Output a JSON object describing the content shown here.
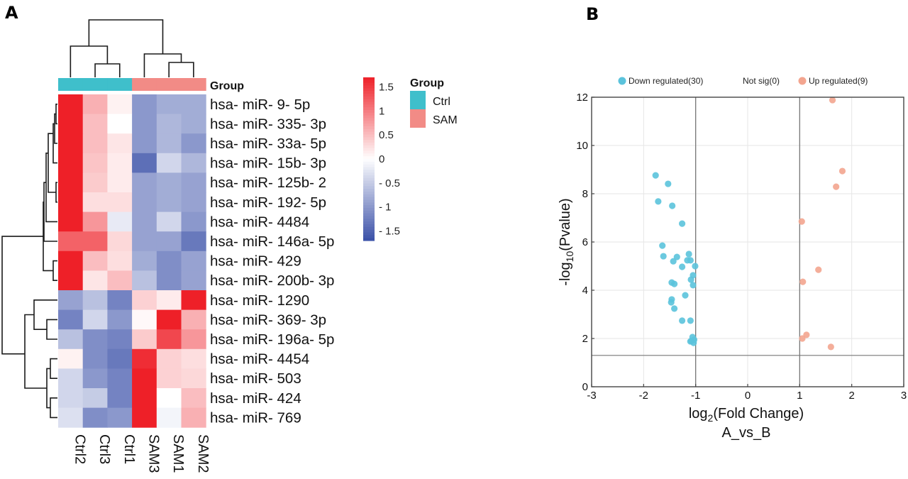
{
  "chart_data": [
    {
      "panel": "A",
      "type": "heatmap",
      "title": "",
      "group_annotation": {
        "label": "Group",
        "legend_title": "Group",
        "groups": [
          {
            "name": "Ctrl",
            "color": "#3fbfcb"
          },
          {
            "name": "SAM",
            "color": "#f28b86"
          }
        ]
      },
      "columns": [
        "Ctrl2",
        "Ctrl3",
        "Ctrl1",
        "SAM3",
        "SAM1",
        "SAM2"
      ],
      "column_groups": [
        "Ctrl",
        "Ctrl",
        "Ctrl",
        "SAM",
        "SAM",
        "SAM"
      ],
      "rows": [
        "hsa- miR- 9- 5p",
        "hsa- miR- 335- 3p",
        "hsa- miR- 33a- 5p",
        "hsa- miR- 15b- 3p",
        "hsa- miR- 125b- 2",
        "hsa- miR- 192- 5p",
        "hsa- miR- 4484",
        "hsa- miR- 146a- 5p",
        "hsa- miR- 429",
        "hsa- miR- 200b- 3p",
        "hsa- miR- 1290",
        "hsa- miR- 369- 3p",
        "hsa- miR- 196a- 5p",
        "hsa- miR- 4454",
        "hsa- miR- 503",
        "hsa- miR- 424",
        "hsa- miR- 769"
      ],
      "values": [
        [
          1.7,
          0.6,
          0.1,
          -1.0,
          -0.8,
          -0.8
        ],
        [
          1.7,
          0.5,
          0.0,
          -1.0,
          -0.7,
          -0.8
        ],
        [
          1.7,
          0.5,
          0.2,
          -1.0,
          -0.7,
          -1.0
        ],
        [
          1.7,
          0.45,
          0.15,
          -1.4,
          -0.4,
          -0.7
        ],
        [
          1.7,
          0.4,
          0.15,
          -0.9,
          -0.8,
          -0.9
        ],
        [
          1.7,
          0.25,
          0.25,
          -0.9,
          -0.8,
          -0.9
        ],
        [
          1.7,
          0.8,
          -0.2,
          -0.9,
          -0.4,
          -1.0
        ],
        [
          1.2,
          1.2,
          0.3,
          -0.9,
          -0.9,
          -1.3
        ],
        [
          1.7,
          0.5,
          0.25,
          -0.8,
          -1.1,
          -0.9
        ],
        [
          1.7,
          0.2,
          0.5,
          -0.6,
          -1.1,
          -0.9
        ],
        [
          -0.9,
          -0.6,
          -1.2,
          0.35,
          0.15,
          1.7
        ],
        [
          -1.2,
          -0.4,
          -1.0,
          0.05,
          1.7,
          0.6
        ],
        [
          -0.6,
          -1.1,
          -1.2,
          0.4,
          1.4,
          0.8
        ],
        [
          0.1,
          -1.1,
          -1.3,
          1.6,
          0.35,
          0.25
        ],
        [
          -0.4,
          -1.0,
          -1.2,
          1.7,
          0.35,
          0.3
        ],
        [
          -0.4,
          -0.5,
          -1.2,
          1.7,
          0.0,
          0.5
        ],
        [
          -0.3,
          -1.1,
          -1.0,
          1.7,
          -0.1,
          0.6
        ]
      ],
      "color_scale": {
        "min": -1.7,
        "mid": 0,
        "max": 1.7,
        "low_color": "#3a50a8",
        "mid_color": "#ffffff",
        "high_color": "#ee2028",
        "ticks": [
          "1.5",
          "1",
          "0.5",
          "0",
          "- 0.5",
          "- 1",
          "- 1.5"
        ],
        "tick_values": [
          1.5,
          1,
          0.5,
          0,
          -0.5,
          -1,
          -1.5
        ]
      },
      "dendrograms": {
        "rows": true,
        "columns": true
      }
    },
    {
      "panel": "B",
      "type": "scatter",
      "title": "",
      "xlabel": "log2(Fold Change)",
      "xlabel_parts": {
        "base": "log",
        "sub": "2",
        "rest": "(Fold Change)"
      },
      "xlabel_line2": "A_vs_B",
      "ylabel": "-log10(Pvalue)",
      "ylabel_parts": {
        "base": "-log",
        "sub": "10",
        "rest": "(Pvalue)"
      },
      "xlim": [
        -3,
        3
      ],
      "ylim": [
        0,
        12
      ],
      "xticks": [
        "-3",
        "-2",
        "-1",
        "0",
        "1",
        "2",
        "3"
      ],
      "xtick_values": [
        -3,
        -2,
        -1,
        0,
        1,
        2,
        3
      ],
      "yticks": [
        "0",
        "2",
        "4",
        "6",
        "8",
        "10",
        "12"
      ],
      "ytick_values": [
        0,
        2,
        4,
        6,
        8,
        10,
        12
      ],
      "grid": true,
      "threshold_lines": {
        "x": [
          -1,
          1
        ],
        "y": [
          1.3
        ]
      },
      "legend_position": "top",
      "series": [
        {
          "name": "Down regulated(30)",
          "color": "#5bc3dc",
          "points": [
            [
              -1.77,
              8.76
            ],
            [
              -1.53,
              8.41
            ],
            [
              -1.72,
              7.68
            ],
            [
              -1.45,
              7.5
            ],
            [
              -1.26,
              6.76
            ],
            [
              -1.64,
              5.85
            ],
            [
              -1.62,
              5.41
            ],
            [
              -1.36,
              5.38
            ],
            [
              -1.43,
              5.2
            ],
            [
              -1.13,
              5.5
            ],
            [
              -1.16,
              5.24
            ],
            [
              -1.1,
              5.24
            ],
            [
              -1.26,
              4.97
            ],
            [
              -1.01,
              5.0
            ],
            [
              -1.05,
              4.62
            ],
            [
              -1.09,
              4.44
            ],
            [
              -1.05,
              4.21
            ],
            [
              -1.46,
              4.32
            ],
            [
              -1.41,
              4.26
            ],
            [
              -1.2,
              3.79
            ],
            [
              -1.46,
              3.62
            ],
            [
              -1.47,
              3.5
            ],
            [
              -1.41,
              3.24
            ],
            [
              -1.26,
              2.74
            ],
            [
              -1.1,
              2.74
            ],
            [
              -1.06,
              2.06
            ],
            [
              -1.1,
              1.88
            ],
            [
              -1.04,
              1.82
            ],
            [
              -1.03,
              1.95
            ],
            [
              -1.08,
              1.9
            ]
          ]
        },
        {
          "name": "Not sig(0)",
          "color": "#999999",
          "points": []
        },
        {
          "name": "Up regulated(9)",
          "color": "#f3a58f",
          "points": [
            [
              1.63,
              11.88
            ],
            [
              1.82,
              8.94
            ],
            [
              1.7,
              8.29
            ],
            [
              1.04,
              6.85
            ],
            [
              1.36,
              4.85
            ],
            [
              1.06,
              4.35
            ],
            [
              1.13,
              2.15
            ],
            [
              1.05,
              2.0
            ],
            [
              1.6,
              1.65
            ]
          ]
        }
      ]
    }
  ],
  "panel_labels": {
    "a": "A",
    "b": "B"
  }
}
